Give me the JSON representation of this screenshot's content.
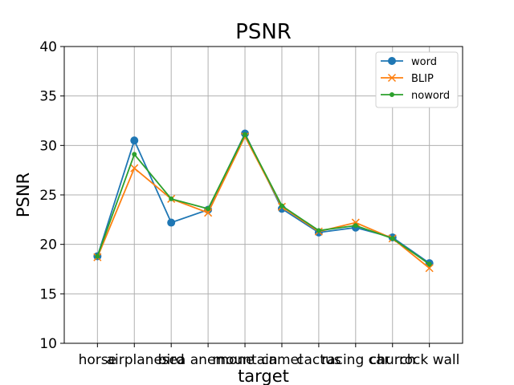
{
  "chart_data": {
    "type": "line",
    "title": "PSNR",
    "xlabel": "target",
    "ylabel": "PSNR",
    "ylim": [
      10,
      40
    ],
    "yticks": [
      10,
      15,
      20,
      25,
      30,
      35,
      40
    ],
    "grid": true,
    "legend_position": "top-right",
    "categories": [
      "horse",
      "airplane",
      "bird",
      "sea anemone",
      "mountain",
      "camel",
      "cactus",
      "racing car",
      "church",
      "rock wall"
    ],
    "series": [
      {
        "name": "word",
        "color": "#1f77b4",
        "marker": "circle",
        "values": [
          18.8,
          30.5,
          22.2,
          23.5,
          31.2,
          23.6,
          21.2,
          21.7,
          20.7,
          18.1
        ]
      },
      {
        "name": "BLIP",
        "color": "#ff7f0e",
        "marker": "x",
        "values": [
          18.7,
          27.7,
          24.6,
          23.2,
          30.9,
          23.8,
          21.3,
          22.2,
          20.6,
          17.6
        ]
      },
      {
        "name": "noword",
        "color": "#2ca02c",
        "marker": "dot",
        "values": [
          18.8,
          29.1,
          24.6,
          23.6,
          31.1,
          23.9,
          21.4,
          21.9,
          20.6,
          18.0
        ]
      }
    ]
  }
}
